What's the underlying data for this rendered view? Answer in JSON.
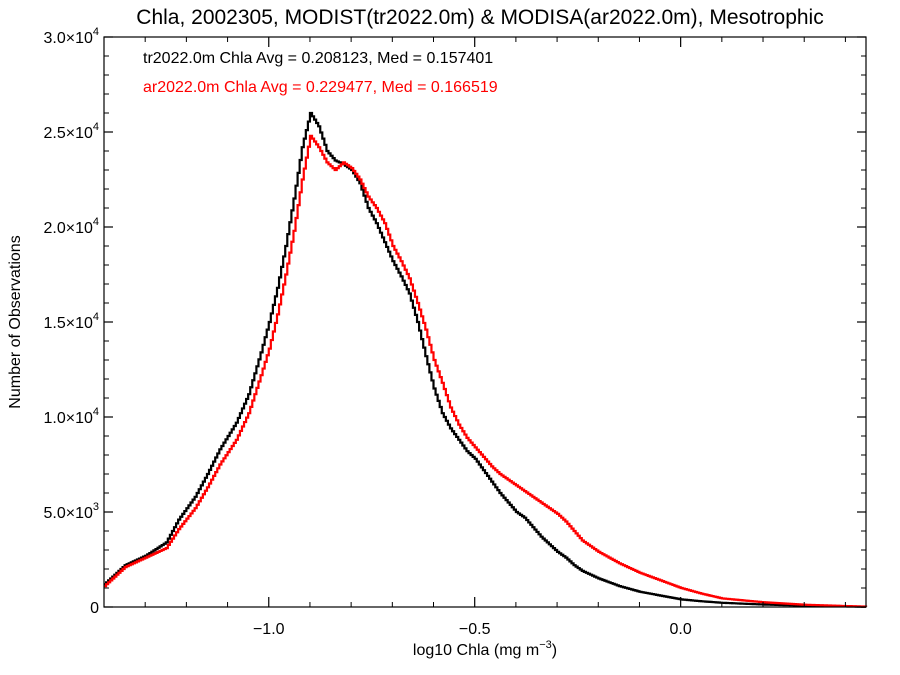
{
  "chart_data": {
    "type": "line",
    "title": "Chla, 2002305, MODIST(tr2022.0m) & MODISA(ar2022.0m), Mesotrophic",
    "xlabel_main": "log10 Chla (mg m",
    "xlabel_sup": "−3",
    "xlabel_close": ")",
    "ylabel": "Number of Observations",
    "xlim": [
      -1.4,
      0.45
    ],
    "ylim": [
      0,
      30000
    ],
    "x_ticks": [
      {
        "value": -1.0,
        "label": "−1.0"
      },
      {
        "value": -0.5,
        "label": "−0.5"
      },
      {
        "value": 0.0,
        "label": "0.0"
      }
    ],
    "y_ticks": [
      {
        "value": 0,
        "mant": "0",
        "exp": ""
      },
      {
        "value": 5000,
        "mant": "5.0×10",
        "exp": "3"
      },
      {
        "value": 10000,
        "mant": "1.0×10",
        "exp": "4"
      },
      {
        "value": 15000,
        "mant": "1.5×10",
        "exp": "4"
      },
      {
        "value": 20000,
        "mant": "2.0×10",
        "exp": "4"
      },
      {
        "value": 25000,
        "mant": "2.5×10",
        "exp": "4"
      },
      {
        "value": 30000,
        "mant": "3.0×10",
        "exp": "4"
      }
    ],
    "annotations": [
      {
        "text": "tr2022.0m Chla Avg = 0.208123, Med = 0.157401",
        "color": "#000000"
      },
      {
        "text": "ar2022.0m Chla Avg = 0.229477, Med = 0.166519",
        "color": "#ff0000"
      }
    ],
    "series": [
      {
        "color": "#000000",
        "points": [
          [
            -1.4,
            1200
          ],
          [
            -1.35,
            2200
          ],
          [
            -1.3,
            2700
          ],
          [
            -1.25,
            3400
          ],
          [
            -1.22,
            4600
          ],
          [
            -1.18,
            5800
          ],
          [
            -1.15,
            7000
          ],
          [
            -1.12,
            8300
          ],
          [
            -1.08,
            9700
          ],
          [
            -1.05,
            11200
          ],
          [
            -1.02,
            13400
          ],
          [
            -1.0,
            15000
          ],
          [
            -0.98,
            16800
          ],
          [
            -0.96,
            19000
          ],
          [
            -0.94,
            21500
          ],
          [
            -0.92,
            24200
          ],
          [
            -0.9,
            26000
          ],
          [
            -0.88,
            25300
          ],
          [
            -0.86,
            24000
          ],
          [
            -0.84,
            23500
          ],
          [
            -0.82,
            23300
          ],
          [
            -0.8,
            23000
          ],
          [
            -0.78,
            22300
          ],
          [
            -0.76,
            21000
          ],
          [
            -0.74,
            20200
          ],
          [
            -0.72,
            19200
          ],
          [
            -0.7,
            18200
          ],
          [
            -0.68,
            17400
          ],
          [
            -0.66,
            16500
          ],
          [
            -0.64,
            15000
          ],
          [
            -0.62,
            13200
          ],
          [
            -0.6,
            11500
          ],
          [
            -0.58,
            10200
          ],
          [
            -0.56,
            9400
          ],
          [
            -0.54,
            8800
          ],
          [
            -0.52,
            8200
          ],
          [
            -0.5,
            7800
          ],
          [
            -0.48,
            7200
          ],
          [
            -0.46,
            6600
          ],
          [
            -0.44,
            6000
          ],
          [
            -0.42,
            5500
          ],
          [
            -0.4,
            5000
          ],
          [
            -0.38,
            4700
          ],
          [
            -0.36,
            4200
          ],
          [
            -0.34,
            3700
          ],
          [
            -0.32,
            3300
          ],
          [
            -0.3,
            2900
          ],
          [
            -0.28,
            2600
          ],
          [
            -0.26,
            2200
          ],
          [
            -0.24,
            1900
          ],
          [
            -0.2,
            1500
          ],
          [
            -0.15,
            1100
          ],
          [
            -0.1,
            800
          ],
          [
            -0.05,
            600
          ],
          [
            0.0,
            400
          ],
          [
            0.05,
            300
          ],
          [
            0.1,
            220
          ],
          [
            0.2,
            130
          ],
          [
            0.3,
            70
          ],
          [
            0.4,
            30
          ],
          [
            0.45,
            10
          ]
        ]
      },
      {
        "color": "#ff0000",
        "points": [
          [
            -1.4,
            1100
          ],
          [
            -1.35,
            2100
          ],
          [
            -1.3,
            2600
          ],
          [
            -1.25,
            3100
          ],
          [
            -1.22,
            4100
          ],
          [
            -1.18,
            5200
          ],
          [
            -1.15,
            6300
          ],
          [
            -1.12,
            7500
          ],
          [
            -1.08,
            8800
          ],
          [
            -1.05,
            10200
          ],
          [
            -1.02,
            12200
          ],
          [
            -1.0,
            13600
          ],
          [
            -0.98,
            15400
          ],
          [
            -0.96,
            17500
          ],
          [
            -0.94,
            19800
          ],
          [
            -0.92,
            22500
          ],
          [
            -0.9,
            24800
          ],
          [
            -0.88,
            24200
          ],
          [
            -0.86,
            23400
          ],
          [
            -0.84,
            23000
          ],
          [
            -0.82,
            23400
          ],
          [
            -0.8,
            23100
          ],
          [
            -0.78,
            22500
          ],
          [
            -0.76,
            21600
          ],
          [
            -0.74,
            21000
          ],
          [
            -0.72,
            20200
          ],
          [
            -0.7,
            19000
          ],
          [
            -0.68,
            18200
          ],
          [
            -0.66,
            17300
          ],
          [
            -0.64,
            16000
          ],
          [
            -0.62,
            14600
          ],
          [
            -0.6,
            13000
          ],
          [
            -0.58,
            11800
          ],
          [
            -0.56,
            10500
          ],
          [
            -0.54,
            9600
          ],
          [
            -0.52,
            8900
          ],
          [
            -0.5,
            8400
          ],
          [
            -0.48,
            7900
          ],
          [
            -0.46,
            7400
          ],
          [
            -0.44,
            7000
          ],
          [
            -0.42,
            6700
          ],
          [
            -0.4,
            6400
          ],
          [
            -0.38,
            6100
          ],
          [
            -0.36,
            5800
          ],
          [
            -0.34,
            5500
          ],
          [
            -0.32,
            5200
          ],
          [
            -0.3,
            4900
          ],
          [
            -0.28,
            4500
          ],
          [
            -0.26,
            4000
          ],
          [
            -0.24,
            3500
          ],
          [
            -0.2,
            2900
          ],
          [
            -0.15,
            2300
          ],
          [
            -0.1,
            1800
          ],
          [
            -0.05,
            1400
          ],
          [
            0.0,
            1000
          ],
          [
            0.05,
            700
          ],
          [
            0.1,
            450
          ],
          [
            0.2,
            250
          ],
          [
            0.3,
            120
          ],
          [
            0.4,
            50
          ],
          [
            0.45,
            20
          ]
        ]
      }
    ]
  }
}
